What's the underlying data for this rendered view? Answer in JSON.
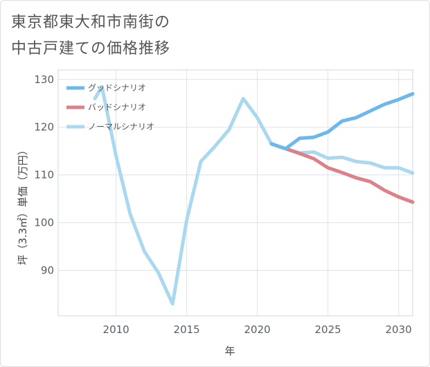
{
  "title": {
    "line1": "東京都東大和市南街の",
    "line2": "中古戸建ての価格推移"
  },
  "chart_data": {
    "type": "line",
    "xlabel": "年",
    "ylabel": "坪（3.3㎡）単価（万円）",
    "xlim": [
      2005.9,
      2031
    ],
    "ylim": [
      80.5,
      132
    ],
    "x_ticks": [
      2010,
      2015,
      2020,
      2025,
      2030
    ],
    "y_ticks": [
      90,
      100,
      110,
      120,
      130
    ],
    "grid": true,
    "legend_position": "top-left",
    "series": [
      {
        "name": "グッドシナリオ",
        "color": "#6bb8ee",
        "x": [
          2021,
          2022,
          2023,
          2024,
          2025,
          2026,
          2027,
          2028,
          2029,
          2030,
          2031
        ],
        "y": [
          116.5,
          115.5,
          117.7,
          117.9,
          119.0,
          121.3,
          122.0,
          123.4,
          124.8,
          125.8,
          127.0
        ]
      },
      {
        "name": "バッドシナリオ",
        "color": "#dd8088",
        "x": [
          2021,
          2022,
          2023,
          2024,
          2025,
          2026,
          2027,
          2028,
          2029,
          2030,
          2031
        ],
        "y": [
          116.5,
          115.5,
          114.5,
          113.4,
          111.5,
          110.5,
          109.4,
          108.6,
          106.8,
          105.4,
          104.3
        ]
      },
      {
        "name": "ノーマルシナリオ",
        "color": "#a9d8ef",
        "x": [
          2008.5,
          2009,
          2010,
          2011,
          2012,
          2013,
          2014,
          2015,
          2016,
          2017,
          2018,
          2019,
          2020,
          2021,
          2022,
          2023,
          2024,
          2025,
          2026,
          2027,
          2028,
          2029,
          2030,
          2031
        ],
        "y": [
          126.0,
          128.5,
          114.0,
          101.8,
          94.0,
          89.5,
          83.0,
          100.5,
          112.8,
          116.0,
          119.5,
          126.0,
          122.0,
          116.5,
          115.5,
          114.6,
          114.8,
          113.5,
          113.7,
          112.8,
          112.5,
          111.5,
          111.5,
          110.4
        ]
      }
    ]
  }
}
